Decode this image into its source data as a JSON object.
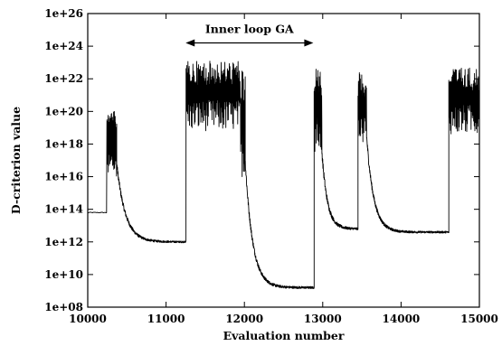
{
  "chart_data": {
    "type": "line",
    "title": "",
    "xlabel": "Evaluation number",
    "ylabel": "D-criterion value",
    "xlim": [
      10000,
      15000
    ],
    "ylim_log10": [
      8,
      26
    ],
    "yscale": "log",
    "grid": false,
    "x_ticks": [
      10000,
      11000,
      12000,
      13000,
      14000,
      15000
    ],
    "x_tick_labels": [
      "10000",
      "11000",
      "12000",
      "13000",
      "14000",
      "15000"
    ],
    "y_ticks_log10": [
      8,
      10,
      12,
      14,
      16,
      18,
      20,
      22,
      24,
      26
    ],
    "y_tick_labels": [
      "1e+08",
      "1e+10",
      "1e+12",
      "1e+14",
      "1e+16",
      "1e+18",
      "1e+20",
      "1e+22",
      "1e+24",
      "1e+26"
    ],
    "annotation": {
      "text": "Inner loop GA",
      "x_start": 11250,
      "x_end": 12880,
      "y_log10": 24.2
    },
    "series": [
      {
        "segments": [
          {
            "kind": "flat",
            "x0": 10000,
            "x1": 10245,
            "y": 13.8
          },
          {
            "kind": "burst",
            "x0": 10245,
            "x1": 10370,
            "y_low": 16.0,
            "y_high": 20.0,
            "step": 2.5
          },
          {
            "kind": "decay",
            "x0": 10370,
            "x1": 11255,
            "y_start": 16.8,
            "y_end": 12.0,
            "tau": 110,
            "noise": 0.45
          },
          {
            "kind": "burst",
            "x0": 11255,
            "x1": 11950,
            "y_low": 18.8,
            "y_high": 23.1,
            "step": 4
          },
          {
            "kind": "burst",
            "x0": 11950,
            "x1": 12010,
            "y_low": 16.0,
            "y_high": 22.5,
            "step": 3
          },
          {
            "kind": "decay",
            "x0": 12010,
            "x1": 12890,
            "y_start": 17.0,
            "y_end": 9.2,
            "tau": 95,
            "noise": 0.55
          },
          {
            "kind": "burst",
            "x0": 12890,
            "x1": 12990,
            "y_low": 17.5,
            "y_high": 22.6,
            "step": 3
          },
          {
            "kind": "decay",
            "x0": 12990,
            "x1": 13450,
            "y_start": 17.5,
            "y_end": 12.8,
            "tau": 70,
            "noise": 0.55
          },
          {
            "kind": "burst",
            "x0": 13450,
            "x1": 13560,
            "y_low": 18.0,
            "y_high": 22.4,
            "step": 3
          },
          {
            "kind": "decay",
            "x0": 13560,
            "x1": 14610,
            "y_start": 18.5,
            "y_end": 12.6,
            "tau": 90,
            "noise": 0.5
          },
          {
            "kind": "burst",
            "x0": 14610,
            "x1": 15000,
            "y_low": 18.6,
            "y_high": 22.7,
            "step": 4
          }
        ]
      }
    ]
  }
}
